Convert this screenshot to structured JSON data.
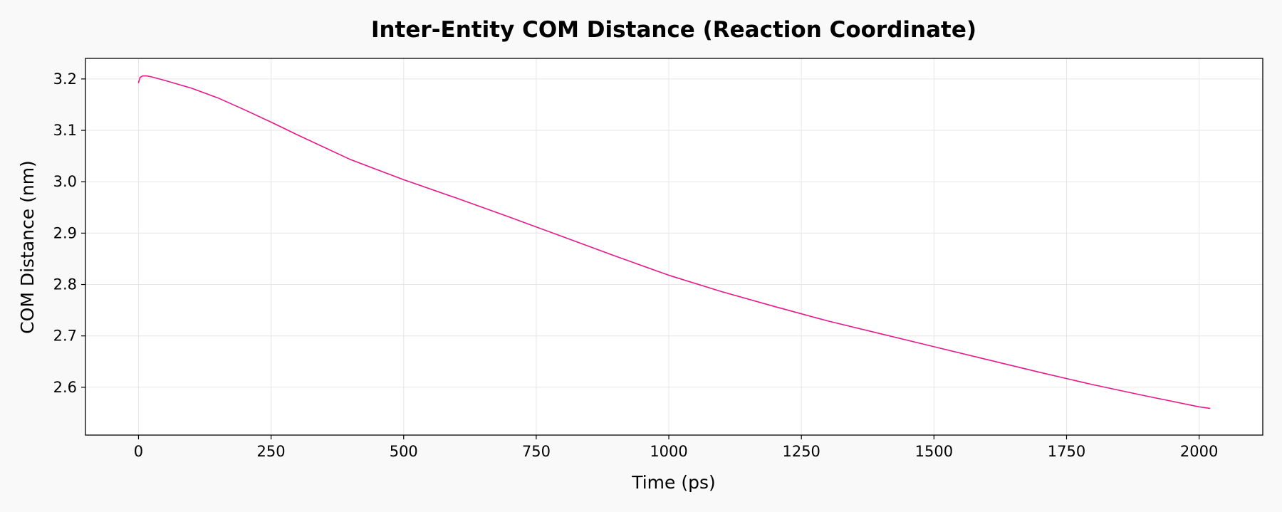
{
  "chart_data": {
    "type": "line",
    "title": "Inter-Entity COM Distance (Reaction Coordinate)",
    "xlabel": "Time (ps)",
    "ylabel": "COM Distance (nm)",
    "xlim": [
      -100,
      2120
    ],
    "ylim": [
      2.507,
      3.24
    ],
    "xticks": [
      0,
      250,
      500,
      750,
      1000,
      1250,
      1500,
      1750,
      2000
    ],
    "yticks": [
      2.6,
      2.7,
      2.8,
      2.9,
      3.0,
      3.1,
      3.2
    ],
    "xtick_labels": [
      "0",
      "250",
      "500",
      "750",
      "1000",
      "1250",
      "1500",
      "1750",
      "2000"
    ],
    "ytick_labels": [
      "2.6",
      "2.7",
      "2.8",
      "2.9",
      "3.0",
      "3.1",
      "3.2"
    ],
    "grid": true,
    "series": [
      {
        "color": "#e8198b",
        "x": [
          0,
          3,
          8,
          15,
          25,
          50,
          100,
          150,
          200,
          250,
          300,
          400,
          500,
          600,
          700,
          750,
          800,
          900,
          1000,
          1100,
          1200,
          1250,
          1300,
          1400,
          1500,
          1600,
          1700,
          1750,
          1800,
          1900,
          2000,
          2020
        ],
        "y": [
          3.193,
          3.203,
          3.206,
          3.206,
          3.204,
          3.197,
          3.182,
          3.163,
          3.14,
          3.116,
          3.091,
          3.043,
          3.004,
          2.968,
          2.931,
          2.912,
          2.893,
          2.855,
          2.818,
          2.786,
          2.757,
          2.743,
          2.729,
          2.704,
          2.679,
          2.654,
          2.629,
          2.617,
          2.605,
          2.583,
          2.562,
          2.559
        ]
      }
    ]
  }
}
